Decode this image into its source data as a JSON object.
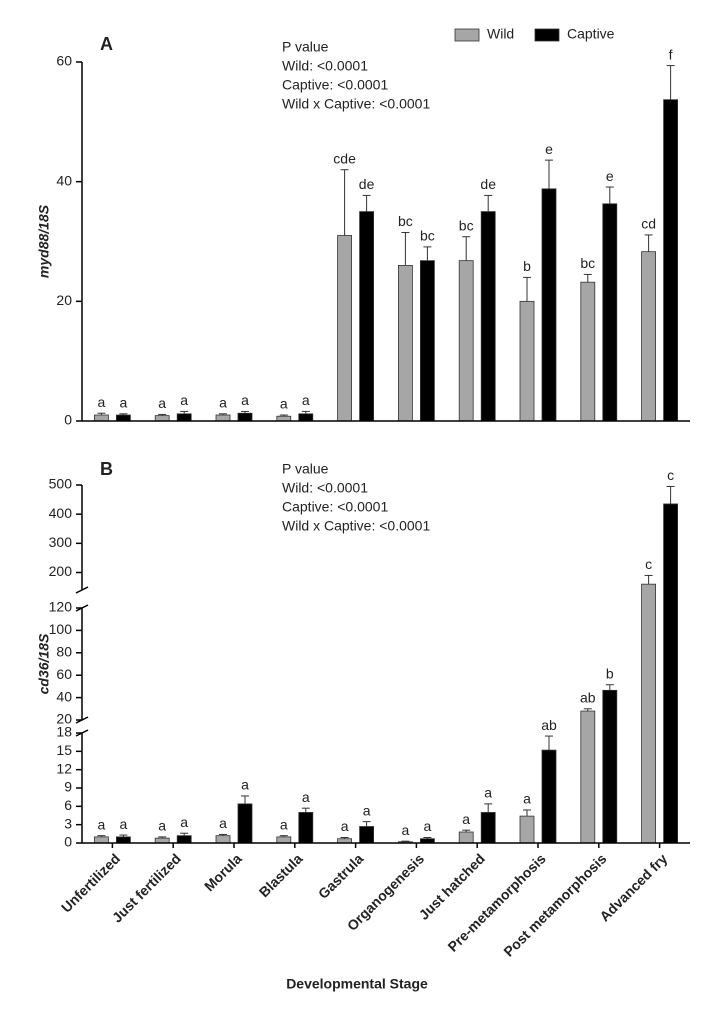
{
  "chart_data": [
    {
      "type": "bar",
      "panel": "A",
      "ylabel": "myd88/18S",
      "annotations": [
        "P value",
        "Wild: <0.0001",
        "Captive: <0.0001",
        "Wild x Captive: <0.0001"
      ],
      "ylim": [
        0,
        60
      ],
      "yticks": [
        0,
        20,
        40,
        60
      ],
      "legend": "top-right",
      "series": [
        {
          "name": "Wild",
          "color": "#a6a6a6",
          "values": [
            1.0,
            0.9,
            1.0,
            0.8,
            31,
            26,
            26.8,
            20,
            23.2,
            28.3
          ],
          "errors": [
            0.3,
            0.2,
            0.2,
            0.2,
            11,
            5.5,
            4,
            4,
            1.3,
            2.8
          ],
          "letters": [
            "a",
            "a",
            "a",
            "a",
            "cde",
            "bc",
            "bc",
            "b",
            "bc",
            "cd"
          ]
        },
        {
          "name": "Captive",
          "color": "#000000",
          "values": [
            1.0,
            1.2,
            1.3,
            1.2,
            35,
            26.8,
            35,
            38.8,
            36.3,
            53.7
          ],
          "errors": [
            0.2,
            0.4,
            0.3,
            0.4,
            2.7,
            2.3,
            2.7,
            4.8,
            2.8,
            5.7
          ],
          "letters": [
            "a",
            "a",
            "a",
            "a",
            "de",
            "bc",
            "de",
            "e",
            "e",
            "f"
          ]
        }
      ]
    },
    {
      "type": "bar",
      "panel": "B",
      "ylabel": "cd36/18S",
      "xlabel": "Developmental Stage",
      "annotations": [
        "P value",
        "Wild: <0.0001",
        "Captive: <0.0001",
        "Wild x Captive: <0.0001"
      ],
      "categories": [
        "Unfertilized",
        "Just fertilized",
        "Morula",
        "Blastula",
        "Gastrula",
        "Organogenesis",
        "Just hatched",
        "Pre-metamorphosis",
        "Post metamorphosis",
        "Advanced fry"
      ],
      "y_segments": [
        {
          "ylim": [
            0,
            18
          ],
          "yticks": [
            0,
            3,
            6,
            9,
            12,
            15,
            18
          ]
        },
        {
          "ylim": [
            20,
            120
          ],
          "yticks": [
            20,
            40,
            60,
            80,
            100,
            120
          ]
        },
        {
          "ylim": [
            140,
            500
          ],
          "yticks": [
            200,
            300,
            400,
            500
          ]
        }
      ],
      "series": [
        {
          "color": "#a6a6a6",
          "values": [
            1.0,
            0.8,
            1.2,
            1.0,
            0.7,
            0.2,
            1.8,
            4.4,
            28,
            160
          ],
          "errors": [
            0.2,
            0.2,
            0.2,
            0.2,
            0.2,
            0.1,
            0.3,
            1.0,
            2,
            30
          ],
          "letters": [
            "a",
            "a",
            "a",
            "a",
            "a",
            "a",
            "a",
            "a",
            "ab",
            "c"
          ]
        },
        {
          "color": "#000000",
          "values": [
            1.0,
            1.2,
            6.4,
            5.0,
            2.7,
            0.7,
            5.0,
            15.2,
            46.5,
            435
          ],
          "errors": [
            0.3,
            0.4,
            1.3,
            0.7,
            0.8,
            0.2,
            1.4,
            2.3,
            5,
            60
          ],
          "letters": [
            "a",
            "a",
            "a",
            "a",
            "a",
            "a",
            "a",
            "ab",
            "b",
            "c"
          ]
        }
      ]
    }
  ]
}
